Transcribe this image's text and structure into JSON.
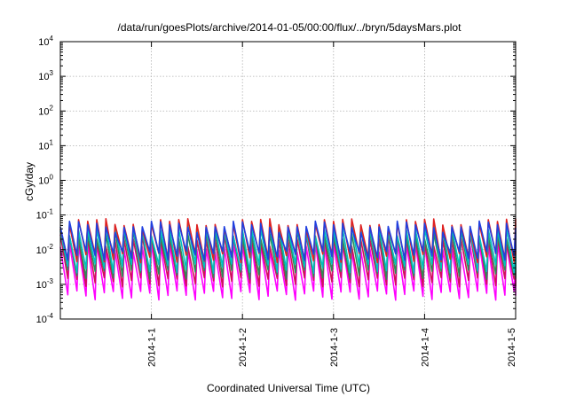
{
  "chart_data": {
    "type": "line",
    "title": "/data/run/goesPlots/archive/2014-01-05/00:00/flux/../bryn/5daysMars.plot",
    "xlabel": "Coordinated Universal Time (UTC)",
    "ylabel": "cGy/day",
    "y_scale": "log",
    "ylim_exp": [
      -4,
      4
    ],
    "yticks": [
      {
        "base": "10",
        "exp": "4"
      },
      {
        "base": "10",
        "exp": "3"
      },
      {
        "base": "10",
        "exp": "2"
      },
      {
        "base": "10",
        "exp": "1"
      },
      {
        "base": "10",
        "exp": "0"
      },
      {
        "base": "10",
        "exp": "-1"
      },
      {
        "base": "10",
        "exp": "-2"
      },
      {
        "base": "10",
        "exp": "-3"
      },
      {
        "base": "10",
        "exp": "-4"
      }
    ],
    "xlim": [
      "2013-12-31T00:00",
      "2014-01-05T00:00"
    ],
    "xticks": [
      "2014-1-1",
      "2014-1-2",
      "2014-1-3",
      "2014-1-4",
      "2014-1-5"
    ],
    "grid": true,
    "pattern": "sawtooth",
    "teeth_count": 50,
    "series": [
      {
        "color": "#ff00ff",
        "peak": 0.012,
        "trough": 0.0005
      },
      {
        "color": "#d0105a",
        "peak": 0.02,
        "trough": 0.0012
      },
      {
        "color": "#2e8b57",
        "peak": 0.03,
        "trough": 0.002
      },
      {
        "color": "#00c0c0",
        "peak": 0.04,
        "trough": 0.003
      },
      {
        "color": "#e02020",
        "peak": 0.06,
        "trough": 0.006
      },
      {
        "color": "#2040e0",
        "peak": 0.05,
        "trough": 0.007
      }
    ]
  }
}
